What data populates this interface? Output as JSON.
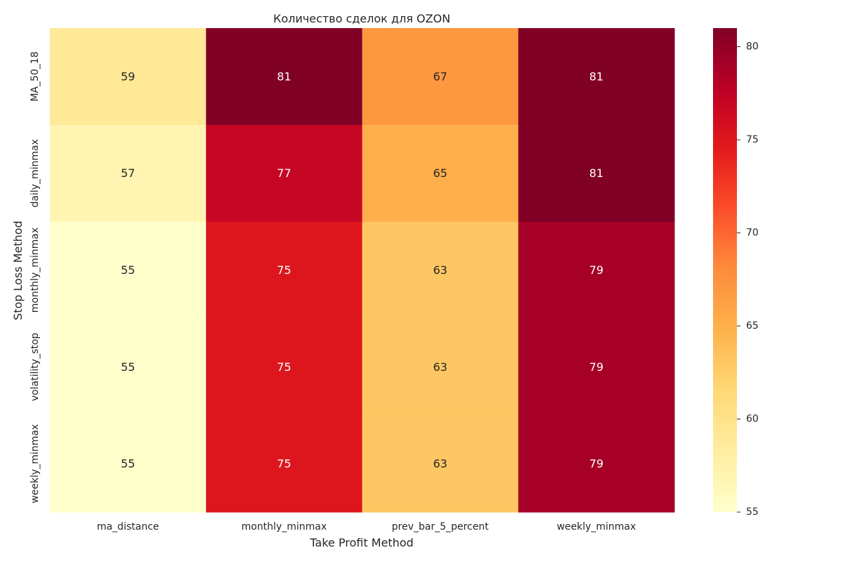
{
  "chart_data": {
    "type": "heatmap",
    "title": "Количество сделок для OZON",
    "xlabel": "Take Profit Method",
    "ylabel": "Stop Loss Method",
    "x_categories": [
      "ma_distance",
      "monthly_minmax",
      "prev_bar_5_percent",
      "weekly_minmax"
    ],
    "y_categories": [
      "MA_50_18",
      "daily_minmax",
      "monthly_minmax",
      "volatility_stop",
      "weekly_minmax"
    ],
    "values": [
      [
        59,
        81,
        67,
        81
      ],
      [
        57,
        77,
        65,
        81
      ],
      [
        55,
        75,
        63,
        79
      ],
      [
        55,
        75,
        63,
        79
      ],
      [
        55,
        75,
        63,
        79
      ]
    ],
    "colorbar": {
      "range": [
        55,
        81
      ],
      "ticks": [
        55,
        60,
        65,
        70,
        75,
        80
      ]
    },
    "colormap": "YlOrRd",
    "annotated": true
  }
}
